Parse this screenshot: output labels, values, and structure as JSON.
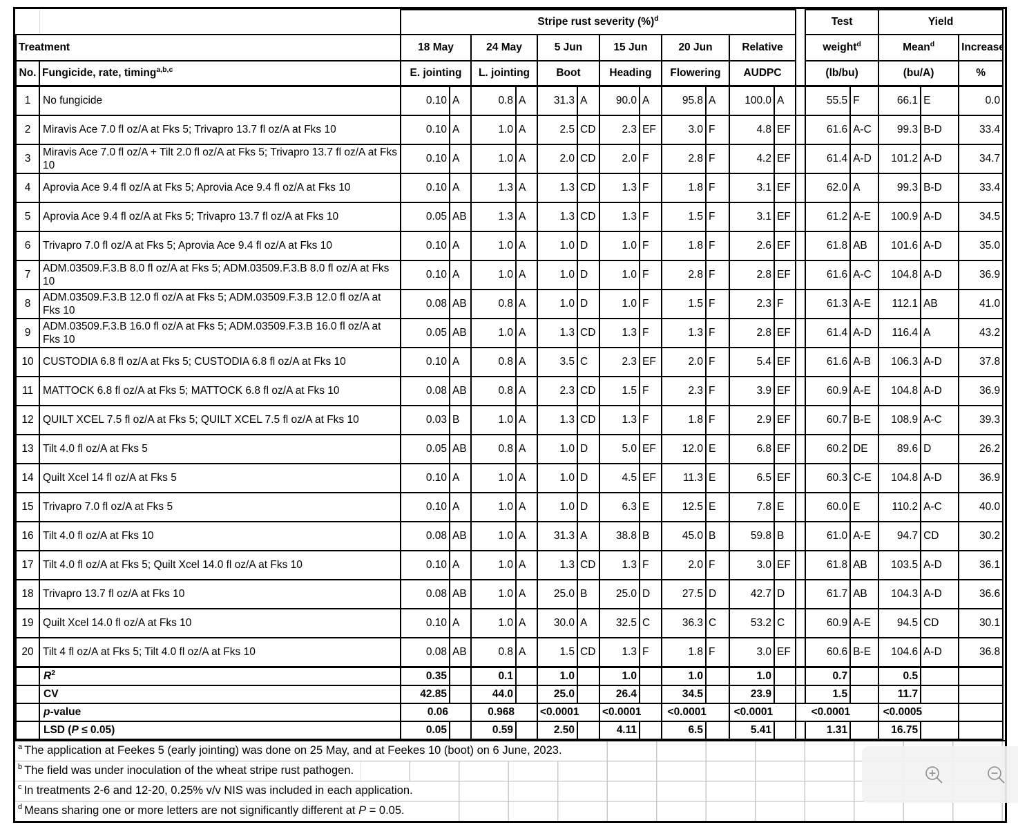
{
  "header": {
    "severity_title": "Stripe rust severity (%)",
    "severity_sup": "d",
    "test_label": "Test",
    "yield_label": "Yield",
    "treatment_label": "Treatment",
    "no_label": "No.",
    "fungicide_label": "Fungicide, rate, timing",
    "fungicide_sup": "a,b,c",
    "columns": [
      {
        "date": "18 May",
        "stage": "E. jointing"
      },
      {
        "date": "24 May",
        "stage": "L. jointing"
      },
      {
        "date": "5 Jun",
        "stage": "Boot"
      },
      {
        "date": "15 Jun",
        "stage": "Heading"
      },
      {
        "date": "20 Jun",
        "stage": "Flowering"
      },
      {
        "date": "Relative",
        "stage": "AUDPC"
      }
    ],
    "weight_label": "weight",
    "weight_sup": "d",
    "weight_unit": "(lb/bu)",
    "mean_label": "Mean",
    "mean_sup": "d",
    "mean_unit": "(bu/A)",
    "increase_label": "Increase",
    "increase_unit": "%"
  },
  "rows": [
    {
      "no": "1",
      "treatment": "No fungicide",
      "sev": [
        "0.10",
        "A",
        "0.8",
        "A",
        "31.3",
        "A",
        "90.0",
        "A",
        "95.8",
        "A",
        "100.0",
        "A"
      ],
      "weight": [
        "55.5",
        "F"
      ],
      "mean": [
        "66.1",
        "E"
      ],
      "increase": "0.0"
    },
    {
      "no": "2",
      "treatment": "Miravis Ace 7.0 fl oz/A at Fks 5; Trivapro 13.7 fl oz/A at Fks 10",
      "sev": [
        "0.10",
        "A",
        "1.0",
        "A",
        "2.5",
        "CD",
        "2.3",
        "EF",
        "3.0",
        "F",
        "4.8",
        "EF"
      ],
      "weight": [
        "61.6",
        "A-C"
      ],
      "mean": [
        "99.3",
        "B-D"
      ],
      "increase": "33.4"
    },
    {
      "no": "3",
      "treatment": "Miravis Ace 7.0 fl oz/A + Tilt 2.0 fl oz/A at Fks 5; Trivapro 13.7 fl oz/A at Fks 10",
      "sev": [
        "0.10",
        "A",
        "1.0",
        "A",
        "2.0",
        "CD",
        "2.0",
        "F",
        "2.8",
        "F",
        "4.2",
        "EF"
      ],
      "weight": [
        "61.4",
        "A-D"
      ],
      "mean": [
        "101.2",
        "A-D"
      ],
      "increase": "34.7"
    },
    {
      "no": "4",
      "treatment": "Aprovia Ace 9.4 fl oz/A at Fks 5; Aprovia Ace 9.4 fl oz/A at Fks 10",
      "sev": [
        "0.10",
        "A",
        "1.3",
        "A",
        "1.3",
        "CD",
        "1.3",
        "F",
        "1.8",
        "F",
        "3.1",
        "EF"
      ],
      "weight": [
        "62.0",
        "A"
      ],
      "mean": [
        "99.3",
        "B-D"
      ],
      "increase": "33.4"
    },
    {
      "no": "5",
      "treatment": "Aprovia Ace 9.4 fl oz/A at Fks 5; Trivapro 13.7 fl oz/A at Fks 10",
      "sev": [
        "0.05",
        "AB",
        "1.3",
        "A",
        "1.3",
        "CD",
        "1.3",
        "F",
        "1.5",
        "F",
        "3.1",
        "EF"
      ],
      "weight": [
        "61.2",
        "A-E"
      ],
      "mean": [
        "100.9",
        "A-D"
      ],
      "increase": "34.5"
    },
    {
      "no": "6",
      "treatment": "Trivapro 7.0 fl oz/A at Fks 5; Aprovia Ace 9.4 fl oz/A at Fks 10",
      "sev": [
        "0.10",
        "A",
        "1.0",
        "A",
        "1.0",
        "D",
        "1.0",
        "F",
        "1.8",
        "F",
        "2.6",
        "EF"
      ],
      "weight": [
        "61.8",
        "AB"
      ],
      "mean": [
        "101.6",
        "A-D"
      ],
      "increase": "35.0"
    },
    {
      "no": "7",
      "treatment": "ADM.03509.F.3.B 8.0 fl oz/A at Fks 5; ADM.03509.F.3.B 8.0 fl oz/A at Fks 10",
      "sev": [
        "0.10",
        "A",
        "1.0",
        "A",
        "1.0",
        "D",
        "1.0",
        "F",
        "2.8",
        "F",
        "2.8",
        "EF"
      ],
      "weight": [
        "61.6",
        "A-C"
      ],
      "mean": [
        "104.8",
        "A-D"
      ],
      "increase": "36.9"
    },
    {
      "no": "8",
      "treatment": "ADM.03509.F.3.B 12.0 fl oz/A at Fks 5; ADM.03509.F.3.B 12.0 fl oz/A at Fks 10",
      "sev": [
        "0.08",
        "AB",
        "0.8",
        "A",
        "1.0",
        "D",
        "1.0",
        "F",
        "1.5",
        "F",
        "2.3",
        "F"
      ],
      "weight": [
        "61.3",
        "A-E"
      ],
      "mean": [
        "112.1",
        "AB"
      ],
      "increase": "41.0"
    },
    {
      "no": "9",
      "treatment": "ADM.03509.F.3.B 16.0 fl oz/A at Fks 5; ADM.03509.F.3.B 16.0 fl oz/A at Fks 10",
      "sev": [
        "0.05",
        "AB",
        "1.0",
        "A",
        "1.3",
        "CD",
        "1.3",
        "F",
        "1.3",
        "F",
        "2.8",
        "EF"
      ],
      "weight": [
        "61.4",
        "A-D"
      ],
      "mean": [
        "116.4",
        "A"
      ],
      "increase": "43.2"
    },
    {
      "no": "10",
      "treatment": "CUSTODIA 6.8 fl oz/A at Fks 5; CUSTODIA 6.8 fl oz/A at Fks 10",
      "sev": [
        "0.10",
        "A",
        "0.8",
        "A",
        "3.5",
        "C",
        "2.3",
        "EF",
        "2.0",
        "F",
        "5.4",
        "EF"
      ],
      "weight": [
        "61.6",
        "A-B"
      ],
      "mean": [
        "106.3",
        "A-D"
      ],
      "increase": "37.8"
    },
    {
      "no": "11",
      "treatment": "MATTOCK 6.8 fl oz/A at Fks 5; MATTOCK 6.8 fl oz/A at Fks 10",
      "sev": [
        "0.08",
        "AB",
        "0.8",
        "A",
        "2.3",
        "CD",
        "1.5",
        "F",
        "2.3",
        "F",
        "3.9",
        "EF"
      ],
      "weight": [
        "60.9",
        "A-E"
      ],
      "mean": [
        "104.8",
        "A-D"
      ],
      "increase": "36.9"
    },
    {
      "no": "12",
      "treatment": "QUILT XCEL 7.5 fl oz/A at Fks 5; QUILT XCEL 7.5 fl oz/A at Fks 10",
      "sev": [
        "0.03",
        "B",
        "1.0",
        "A",
        "1.3",
        "CD",
        "1.3",
        "F",
        "1.8",
        "F",
        "2.9",
        "EF"
      ],
      "weight": [
        "60.7",
        "B-E"
      ],
      "mean": [
        "108.9",
        "A-C"
      ],
      "increase": "39.3"
    },
    {
      "no": "13",
      "treatment": "Tilt 4.0 fl oz/A at Fks 5",
      "sev": [
        "0.05",
        "AB",
        "0.8",
        "A",
        "1.0",
        "D",
        "5.0",
        "EF",
        "12.0",
        "E",
        "6.8",
        "EF"
      ],
      "weight": [
        "60.2",
        "DE"
      ],
      "mean": [
        "89.6",
        "D"
      ],
      "increase": "26.2"
    },
    {
      "no": "14",
      "treatment": "Quilt Xcel 14 fl oz/A at Fks 5",
      "sev": [
        "0.10",
        "A",
        "1.0",
        "A",
        "1.0",
        "D",
        "4.5",
        "EF",
        "11.3",
        "E",
        "6.5",
        "EF"
      ],
      "weight": [
        "60.3",
        "C-E"
      ],
      "mean": [
        "104.8",
        "A-D"
      ],
      "increase": "36.9"
    },
    {
      "no": "15",
      "treatment": "Trivapro 7.0 fl oz/A at Fks 5",
      "sev": [
        "0.10",
        "A",
        "1.0",
        "A",
        "1.0",
        "D",
        "6.3",
        "E",
        "12.5",
        "E",
        "7.8",
        "E"
      ],
      "weight": [
        "60.0",
        "E"
      ],
      "mean": [
        "110.2",
        "A-C"
      ],
      "increase": "40.0"
    },
    {
      "no": "16",
      "treatment": "Tilt 4.0 fl oz/A at Fks 10",
      "sev": [
        "0.08",
        "AB",
        "1.0",
        "A",
        "31.3",
        "A",
        "38.8",
        "B",
        "45.0",
        "B",
        "59.8",
        "B"
      ],
      "weight": [
        "61.0",
        "A-E"
      ],
      "mean": [
        "94.7",
        "CD"
      ],
      "increase": "30.2"
    },
    {
      "no": "17",
      "treatment": "Tilt 4.0 fl oz/A at Fks 5; Quilt Xcel 14.0 fl oz/A at Fks 10",
      "sev": [
        "0.10",
        "A",
        "1.0",
        "A",
        "1.3",
        "CD",
        "1.3",
        "F",
        "2.0",
        "F",
        "3.0",
        "EF"
      ],
      "weight": [
        "61.8",
        "AB"
      ],
      "mean": [
        "103.5",
        "A-D"
      ],
      "increase": "36.1"
    },
    {
      "no": "18",
      "treatment": "Trivapro 13.7 fl oz/A at Fks 10",
      "sev": [
        "0.08",
        "AB",
        "1.0",
        "A",
        "25.0",
        "B",
        "25.0",
        "D",
        "27.5",
        "D",
        "42.7",
        "D"
      ],
      "weight": [
        "61.7",
        "AB"
      ],
      "mean": [
        "104.3",
        "A-D"
      ],
      "increase": "36.6"
    },
    {
      "no": "19",
      "treatment": "Quilt Xcel 14.0 fl oz/A at Fks 10",
      "sev": [
        "0.10",
        "A",
        "1.0",
        "A",
        "30.0",
        "A",
        "32.5",
        "C",
        "36.3",
        "C",
        "53.2",
        "C"
      ],
      "weight": [
        "60.9",
        "A-E"
      ],
      "mean": [
        "94.5",
        "CD"
      ],
      "increase": "30.1"
    },
    {
      "no": "20",
      "treatment": "Tilt 4 fl oz/A at Fks 5; Tilt 4.0 fl oz/A at Fks 10",
      "sev": [
        "0.08",
        "AB",
        "0.8",
        "A",
        "1.5",
        "CD",
        "1.3",
        "F",
        "1.8",
        "F",
        "3.0",
        "EF"
      ],
      "weight": [
        "60.6",
        "B-E"
      ],
      "mean": [
        "104.6",
        "A-D"
      ],
      "increase": "36.8"
    }
  ],
  "stats": [
    {
      "label_pre": "",
      "label_italic": "R",
      "label_sup": "2",
      "label_post": "",
      "merged": false,
      "values": [
        "0.35",
        "0.1",
        "1.0",
        "1.0",
        "1.0",
        "1.0",
        "0.7",
        "0.5",
        ""
      ]
    },
    {
      "label_pre": "CV",
      "label_italic": "",
      "label_sup": "",
      "label_post": "",
      "merged": false,
      "values": [
        "42.85",
        "44.0",
        "25.0",
        "26.4",
        "34.5",
        "23.9",
        "1.5",
        "11.7",
        ""
      ]
    },
    {
      "label_pre": "",
      "label_italic": "p",
      "label_sup": "",
      "label_post": "-value",
      "merged": true,
      "values": [
        "0.06",
        "0.968",
        "<0.0001",
        "<0.0001",
        "<0.0001",
        "<0.0001",
        "<0.0001",
        "<0.0005",
        ""
      ]
    },
    {
      "label_pre": "LSD (",
      "label_italic": "P",
      "label_sup": "",
      "label_post": " ≤ 0.05)",
      "merged": false,
      "values": [
        "0.05",
        "0.59",
        "2.50",
        "4.11",
        "6.5",
        "5.41",
        "1.31",
        "16.75",
        ""
      ]
    }
  ],
  "footnotes": [
    {
      "sup": "a",
      "pre": "The application at Feekes 5 (early jointing) was done on 25 May, and at Feekes 10 (boot) on 6 June, 2023.",
      "italic": "",
      "post": ""
    },
    {
      "sup": "b",
      "pre": "The field was under inoculation of the wheat stripe rust pathogen.",
      "italic": "",
      "post": ""
    },
    {
      "sup": "c",
      "pre": "In treatments 2-6 and 12-20, 0.25% v/v NIS was included in each application.",
      "italic": "",
      "post": ""
    },
    {
      "sup": "d",
      "pre": "Means sharing one or more letters are not significantly different at ",
      "italic": "P",
      "post": " = 0.05."
    }
  ],
  "zoom_controls": {
    "zoom_in_icon": "magnifier-plus",
    "zoom_out_icon": "magnifier-minus"
  },
  "colors": {
    "table_border": "#000000",
    "gridline_gray": "#c9c9c9",
    "panel_gray": "#f2f2f2",
    "icon_gray": "#8f8f8f"
  }
}
